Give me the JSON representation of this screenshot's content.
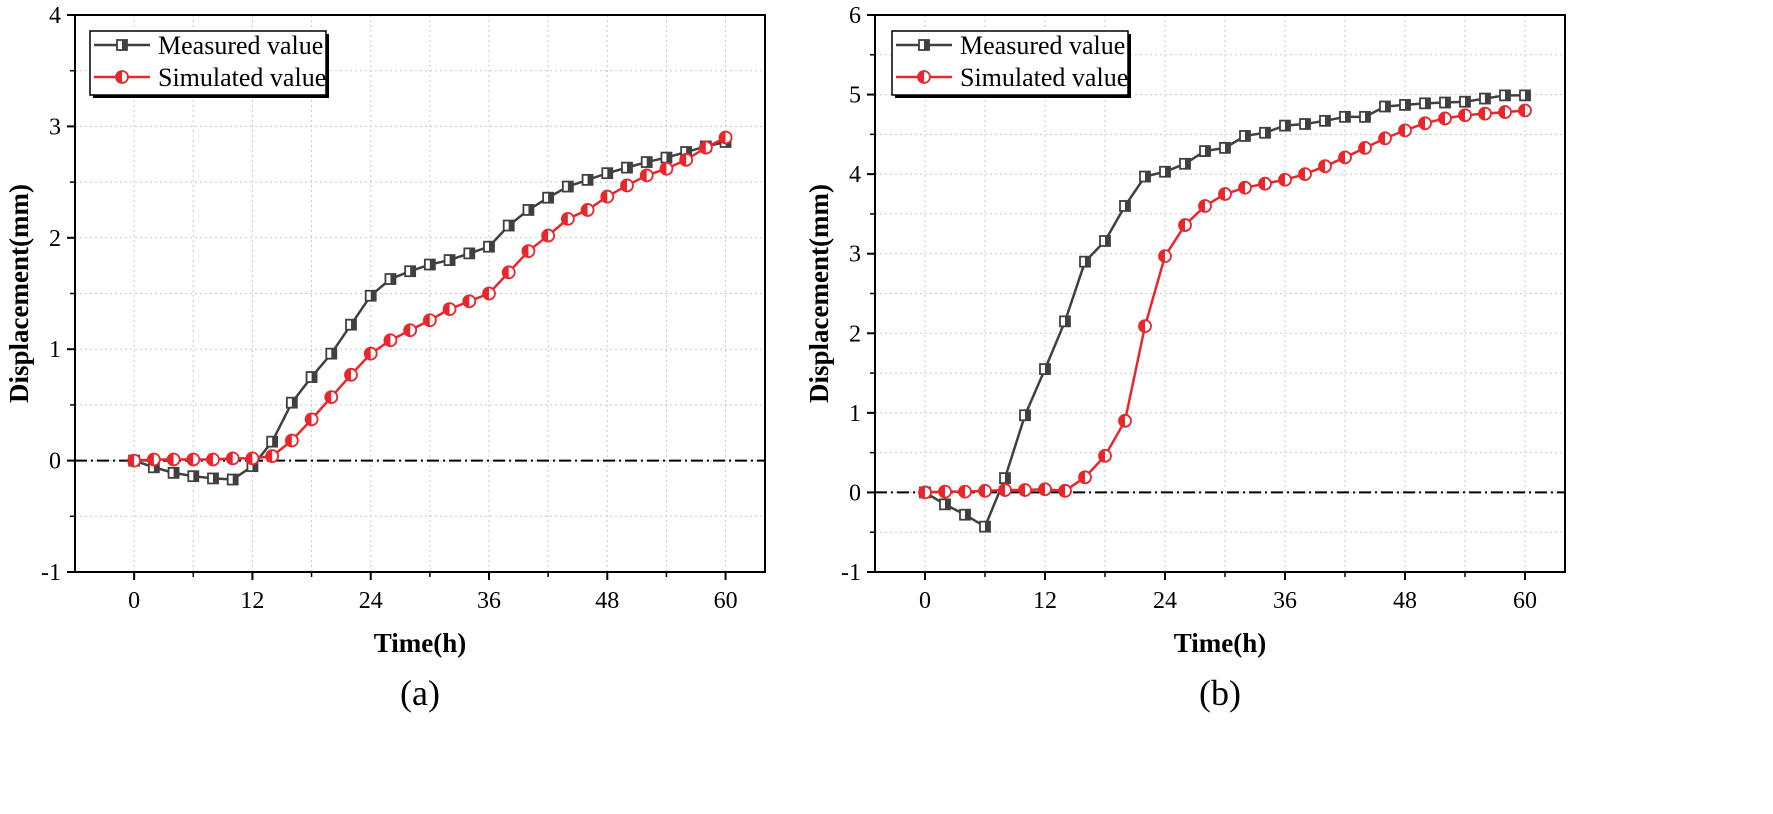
{
  "chart_data": [
    {
      "type": "line",
      "panel_label": "(a)",
      "xlabel": "Time(h)",
      "ylabel": "Displacement(mm)",
      "xlim": [
        -6,
        64
      ],
      "ylim": [
        -1,
        4
      ],
      "xticks": [
        0,
        12,
        24,
        36,
        48,
        60
      ],
      "yticks": [
        -1,
        0,
        1,
        2,
        3,
        4
      ],
      "grid": true,
      "zero_line": true,
      "legend_position": "top-left",
      "series": [
        {
          "name": "Measured value",
          "color": "#404040",
          "marker": "square",
          "x": [
            0,
            2,
            4,
            6,
            8,
            10,
            12,
            14,
            16,
            18,
            20,
            22,
            24,
            26,
            28,
            30,
            32,
            34,
            36,
            38,
            40,
            42,
            44,
            46,
            48,
            50,
            52,
            54,
            56,
            58,
            60
          ],
          "y": [
            0,
            -0.06,
            -0.11,
            -0.14,
            -0.16,
            -0.17,
            -0.05,
            0.17,
            0.52,
            0.75,
            0.96,
            1.22,
            1.48,
            1.63,
            1.7,
            1.76,
            1.8,
            1.86,
            1.92,
            2.11,
            2.25,
            2.36,
            2.46,
            2.52,
            2.58,
            2.63,
            2.68,
            2.72,
            2.77,
            2.82,
            2.86
          ]
        },
        {
          "name": "Simulated value",
          "color": "#e8272d",
          "marker": "circle",
          "x": [
            0,
            2,
            4,
            6,
            8,
            10,
            12,
            14,
            16,
            18,
            20,
            22,
            24,
            26,
            28,
            30,
            32,
            34,
            36,
            38,
            40,
            42,
            44,
            46,
            48,
            50,
            52,
            54,
            56,
            58,
            60
          ],
          "y": [
            0,
            0.01,
            0.01,
            0.01,
            0.01,
            0.02,
            0.02,
            0.04,
            0.18,
            0.37,
            0.57,
            0.77,
            0.96,
            1.08,
            1.17,
            1.26,
            1.36,
            1.43,
            1.5,
            1.69,
            1.88,
            2.02,
            2.17,
            2.25,
            2.37,
            2.47,
            2.56,
            2.62,
            2.7,
            2.81,
            2.9
          ]
        }
      ]
    },
    {
      "type": "line",
      "panel_label": "(b)",
      "xlabel": "Time(h)",
      "ylabel": "Displacement(mm)",
      "xlim": [
        -5,
        64
      ],
      "ylim": [
        -1,
        6
      ],
      "xticks": [
        0,
        12,
        24,
        36,
        48,
        60
      ],
      "yticks": [
        -1,
        0,
        1,
        2,
        3,
        4,
        5,
        6
      ],
      "grid": true,
      "zero_line": true,
      "legend_position": "top-left",
      "series": [
        {
          "name": "Measured value",
          "color": "#404040",
          "marker": "square",
          "x": [
            0,
            2,
            4,
            6,
            8,
            10,
            12,
            14,
            16,
            18,
            20,
            22,
            24,
            26,
            28,
            30,
            32,
            34,
            36,
            38,
            40,
            42,
            44,
            46,
            48,
            50,
            52,
            54,
            56,
            58,
            60
          ],
          "y": [
            0,
            -0.15,
            -0.28,
            -0.43,
            0.18,
            0.97,
            1.55,
            2.15,
            2.9,
            3.16,
            3.6,
            3.97,
            4.03,
            4.13,
            4.29,
            4.33,
            4.48,
            4.52,
            4.61,
            4.63,
            4.67,
            4.72,
            4.72,
            4.85,
            4.87,
            4.89,
            4.9,
            4.91,
            4.95,
            4.99,
            4.99
          ]
        },
        {
          "name": "Simulated value",
          "color": "#e8272d",
          "marker": "circle",
          "x": [
            0,
            2,
            4,
            6,
            8,
            10,
            12,
            14,
            16,
            18,
            20,
            22,
            24,
            26,
            28,
            30,
            32,
            34,
            36,
            38,
            40,
            42,
            44,
            46,
            48,
            50,
            52,
            54,
            56,
            58,
            60
          ],
          "y": [
            0,
            0.01,
            0.01,
            0.02,
            0.03,
            0.03,
            0.04,
            0.02,
            0.19,
            0.46,
            0.9,
            2.09,
            2.97,
            3.36,
            3.6,
            3.75,
            3.83,
            3.88,
            3.93,
            4.0,
            4.1,
            4.21,
            4.33,
            4.45,
            4.55,
            4.64,
            4.7,
            4.74,
            4.76,
            4.78,
            4.8
          ]
        }
      ]
    }
  ]
}
